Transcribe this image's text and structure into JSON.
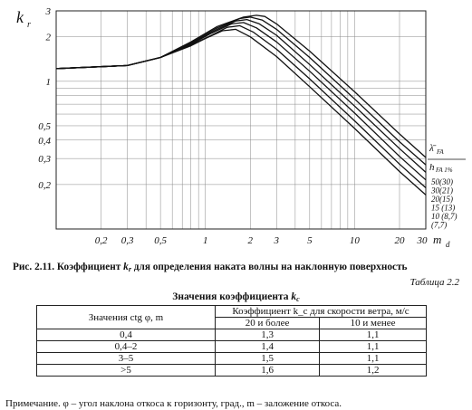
{
  "figure": {
    "caption_prefix": "Рис. 2.11. Коэффициент",
    "caption_symbol": "k",
    "caption_sub": "r",
    "caption_rest": "для определения наката волны на наклонную поверхность"
  },
  "chart_data": {
    "type": "line",
    "x_scale": "log",
    "y_scale": "log",
    "xlim": [
      0.1,
      30
    ],
    "ylim": [
      0.1,
      3
    ],
    "ylabel": "k_r",
    "xlabel": "m_d",
    "x_ticks": [
      "0,2",
      "0,3",
      "0,5",
      "1",
      "2",
      "3",
      "5",
      "10",
      "20",
      "30"
    ],
    "x_tick_values": [
      0.2,
      0.3,
      0.5,
      1,
      2,
      3,
      5,
      10,
      20,
      30
    ],
    "y_ticks": [
      "3",
      "2",
      "1",
      "0,5",
      "0,4",
      "0,3",
      "0,2"
    ],
    "y_tick_values": [
      3,
      2,
      1,
      0.5,
      0.4,
      0.3,
      0.2
    ],
    "legend_title_top": "λ̄",
    "legend_title_top_sub": "FA",
    "legend_title_bottom": "h",
    "legend_title_bottom_sub": "FA 1%",
    "series": [
      {
        "name": "50(30)",
        "points": [
          [
            0.1,
            1.22
          ],
          [
            0.3,
            1.28
          ],
          [
            0.5,
            1.45
          ],
          [
            0.8,
            1.85
          ],
          [
            1.2,
            2.35
          ],
          [
            1.8,
            2.72
          ],
          [
            2.2,
            2.8
          ],
          [
            2.5,
            2.75
          ],
          [
            3,
            2.45
          ],
          [
            5,
            1.6
          ],
          [
            10,
            0.85
          ],
          [
            20,
            0.44
          ],
          [
            30,
            0.305
          ]
        ]
      },
      {
        "name": "30(21)",
        "points": [
          [
            0.1,
            1.22
          ],
          [
            0.3,
            1.28
          ],
          [
            0.5,
            1.45
          ],
          [
            0.8,
            1.82
          ],
          [
            1.2,
            2.3
          ],
          [
            1.7,
            2.66
          ],
          [
            2.0,
            2.72
          ],
          [
            2.4,
            2.6
          ],
          [
            3,
            2.25
          ],
          [
            5,
            1.45
          ],
          [
            10,
            0.76
          ],
          [
            20,
            0.39
          ],
          [
            30,
            0.272
          ]
        ]
      },
      {
        "name": "20(15)",
        "points": [
          [
            0.1,
            1.22
          ],
          [
            0.3,
            1.28
          ],
          [
            0.5,
            1.45
          ],
          [
            0.8,
            1.8
          ],
          [
            1.2,
            2.25
          ],
          [
            1.6,
            2.56
          ],
          [
            1.9,
            2.62
          ],
          [
            2.3,
            2.45
          ],
          [
            3,
            2.05
          ],
          [
            5,
            1.3
          ],
          [
            10,
            0.68
          ],
          [
            20,
            0.35
          ],
          [
            30,
            0.242
          ]
        ]
      },
      {
        "name": "15 (13)",
        "points": [
          [
            0.1,
            1.22
          ],
          [
            0.3,
            1.28
          ],
          [
            0.5,
            1.45
          ],
          [
            0.8,
            1.78
          ],
          [
            1.1,
            2.12
          ],
          [
            1.5,
            2.45
          ],
          [
            1.8,
            2.5
          ],
          [
            2.2,
            2.3
          ],
          [
            3,
            1.85
          ],
          [
            5,
            1.17
          ],
          [
            10,
            0.61
          ],
          [
            20,
            0.31
          ],
          [
            30,
            0.215
          ]
        ]
      },
      {
        "name": "10 (8,7)",
        "points": [
          [
            0.1,
            1.22
          ],
          [
            0.3,
            1.28
          ],
          [
            0.5,
            1.45
          ],
          [
            0.8,
            1.76
          ],
          [
            1.1,
            2.05
          ],
          [
            1.4,
            2.32
          ],
          [
            1.7,
            2.38
          ],
          [
            2.1,
            2.15
          ],
          [
            3,
            1.65
          ],
          [
            5,
            1.04
          ],
          [
            10,
            0.54
          ],
          [
            20,
            0.275
          ],
          [
            30,
            0.19
          ]
        ]
      },
      {
        "name": "(7,7)",
        "points": [
          [
            0.1,
            1.22
          ],
          [
            0.3,
            1.28
          ],
          [
            0.5,
            1.45
          ],
          [
            0.8,
            1.74
          ],
          [
            1.0,
            1.95
          ],
          [
            1.3,
            2.2
          ],
          [
            1.6,
            2.25
          ],
          [
            2.0,
            2.0
          ],
          [
            3,
            1.47
          ],
          [
            5,
            0.92
          ],
          [
            10,
            0.48
          ],
          [
            20,
            0.245
          ],
          [
            30,
            0.17
          ]
        ]
      }
    ]
  },
  "table": {
    "number": "Таблица 2.2",
    "title_prefix": "Значения коэффициента",
    "title_symbol": "k",
    "title_sub": "c",
    "col1_header": "Значения ctg φ, m",
    "group_header": "Коэффициент k_c для скорости ветра, м/с",
    "sub_header_1": "20 и более",
    "sub_header_2": "10 и менее",
    "rows": [
      {
        "ctg": "0,4",
        "v20": "1,3",
        "v10": "1,1"
      },
      {
        "ctg": "0,4–2",
        "v20": "1,4",
        "v10": "1,1"
      },
      {
        "ctg": "3–5",
        "v20": "1,5",
        "v10": "1,1"
      },
      {
        "ctg": ">5",
        "v20": "1,6",
        "v10": "1,2"
      }
    ]
  },
  "note": "Примечание. φ – угол наклона откоса к горизонту, град., m – заложение откоса."
}
